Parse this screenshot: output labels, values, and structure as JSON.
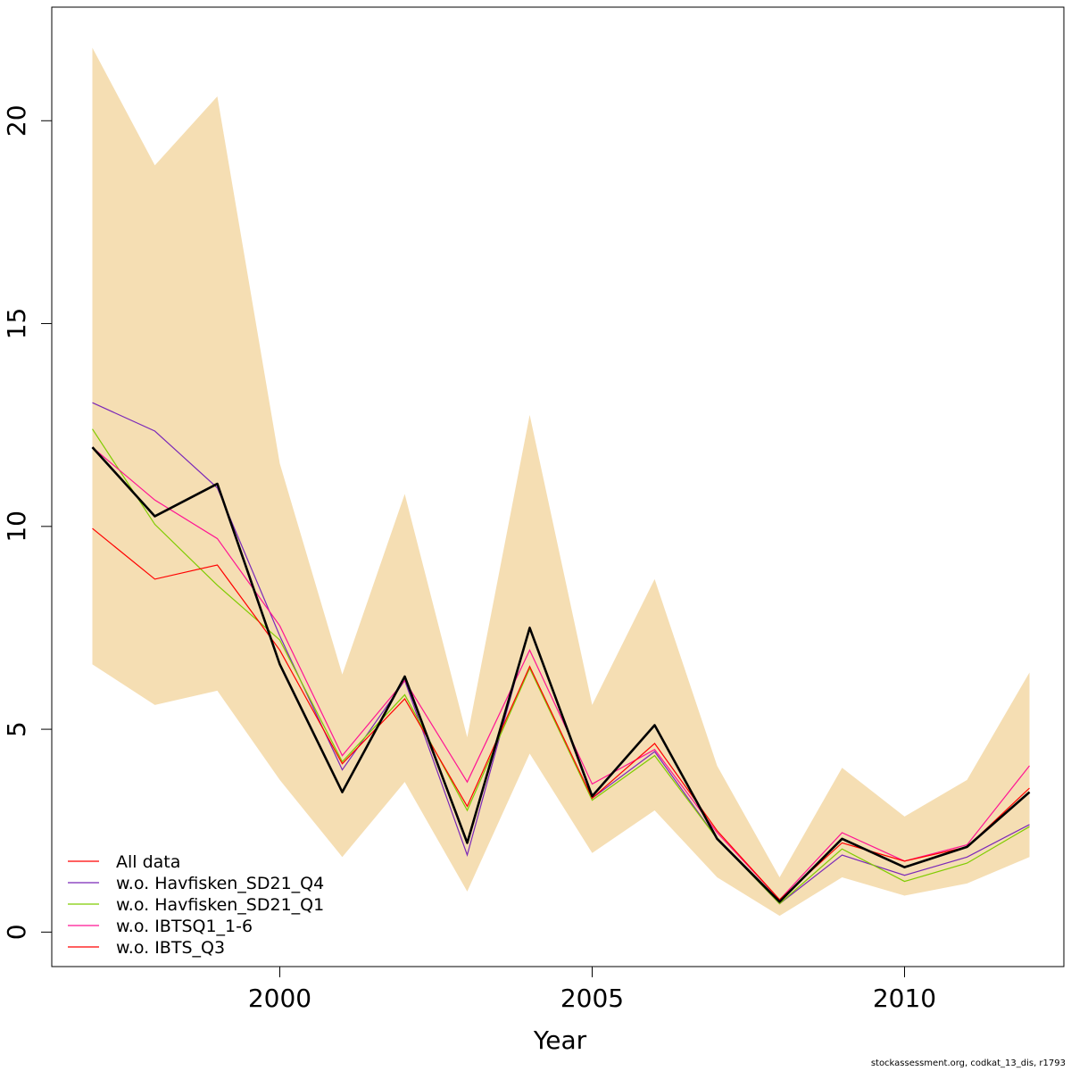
{
  "chart_data": {
    "type": "line",
    "xlabel": "Year",
    "ylabel": "",
    "xlim": [
      1996.35,
      2012.55
    ],
    "ylim": [
      -0.85,
      22.8
    ],
    "xticks": [
      2000,
      2005,
      2010
    ],
    "yticks": [
      0,
      5,
      10,
      15,
      20
    ],
    "x": [
      1997,
      1998,
      1999,
      2000,
      2001,
      2002,
      2003,
      2004,
      2005,
      2006,
      2007,
      2008,
      2009,
      2010,
      2011,
      2012
    ],
    "band": {
      "color": "#F5DEB3",
      "upper": [
        21.8,
        18.9,
        20.6,
        11.55,
        6.35,
        10.8,
        4.8,
        12.75,
        5.6,
        8.7,
        4.1,
        1.35,
        4.05,
        2.85,
        3.75,
        6.4
      ],
      "lower": [
        6.6,
        5.6,
        5.95,
        3.75,
        1.85,
        3.7,
        1.0,
        4.4,
        1.95,
        3.0,
        1.35,
        0.4,
        1.35,
        0.9,
        1.2,
        1.85
      ]
    },
    "main_line": {
      "color": "#000000",
      "values": [
        11.95,
        10.25,
        11.05,
        6.6,
        3.45,
        6.3,
        2.2,
        7.5,
        3.35,
        5.1,
        2.3,
        0.75,
        2.3,
        1.6,
        2.1,
        3.45
      ]
    },
    "series": [
      {
        "name": "All data",
        "color": "#FF0000",
        "values": [
          11.95,
          10.25,
          11.05,
          6.6,
          3.45,
          6.3,
          2.2,
          7.5,
          3.35,
          5.1,
          2.3,
          0.75,
          2.3,
          1.6,
          2.1,
          3.45
        ]
      },
      {
        "name": "w.o. Havfisken_SD21_Q4",
        "color": "#7B28B8",
        "values": [
          13.05,
          12.35,
          10.95,
          7.3,
          4.0,
          6.2,
          1.9,
          7.5,
          3.3,
          4.45,
          2.3,
          0.7,
          1.9,
          1.4,
          1.85,
          2.65
        ]
      },
      {
        "name": "w.o. Havfisken_SD21_Q1",
        "color": "#7FCC00",
        "values": [
          12.4,
          10.05,
          8.55,
          7.2,
          4.2,
          5.85,
          3.0,
          6.5,
          3.25,
          4.35,
          2.3,
          0.7,
          2.05,
          1.25,
          1.7,
          2.6
        ]
      },
      {
        "name": "w.o. IBTSQ1_1-6",
        "color": "#FF1493",
        "values": [
          11.95,
          10.65,
          9.7,
          7.55,
          4.35,
          6.2,
          3.7,
          6.95,
          3.65,
          4.5,
          2.45,
          0.8,
          2.45,
          1.75,
          2.15,
          4.1
        ]
      },
      {
        "name": "w.o. IBTS_Q3",
        "color": "#FF0000",
        "values": [
          9.95,
          8.7,
          9.05,
          6.95,
          4.15,
          5.75,
          3.1,
          6.55,
          3.3,
          4.65,
          2.5,
          0.8,
          2.2,
          1.75,
          2.1,
          3.55
        ]
      }
    ],
    "legend_position": "bottom-left"
  },
  "footer": "stockassessment.org, codkat_13_dis, r1793"
}
